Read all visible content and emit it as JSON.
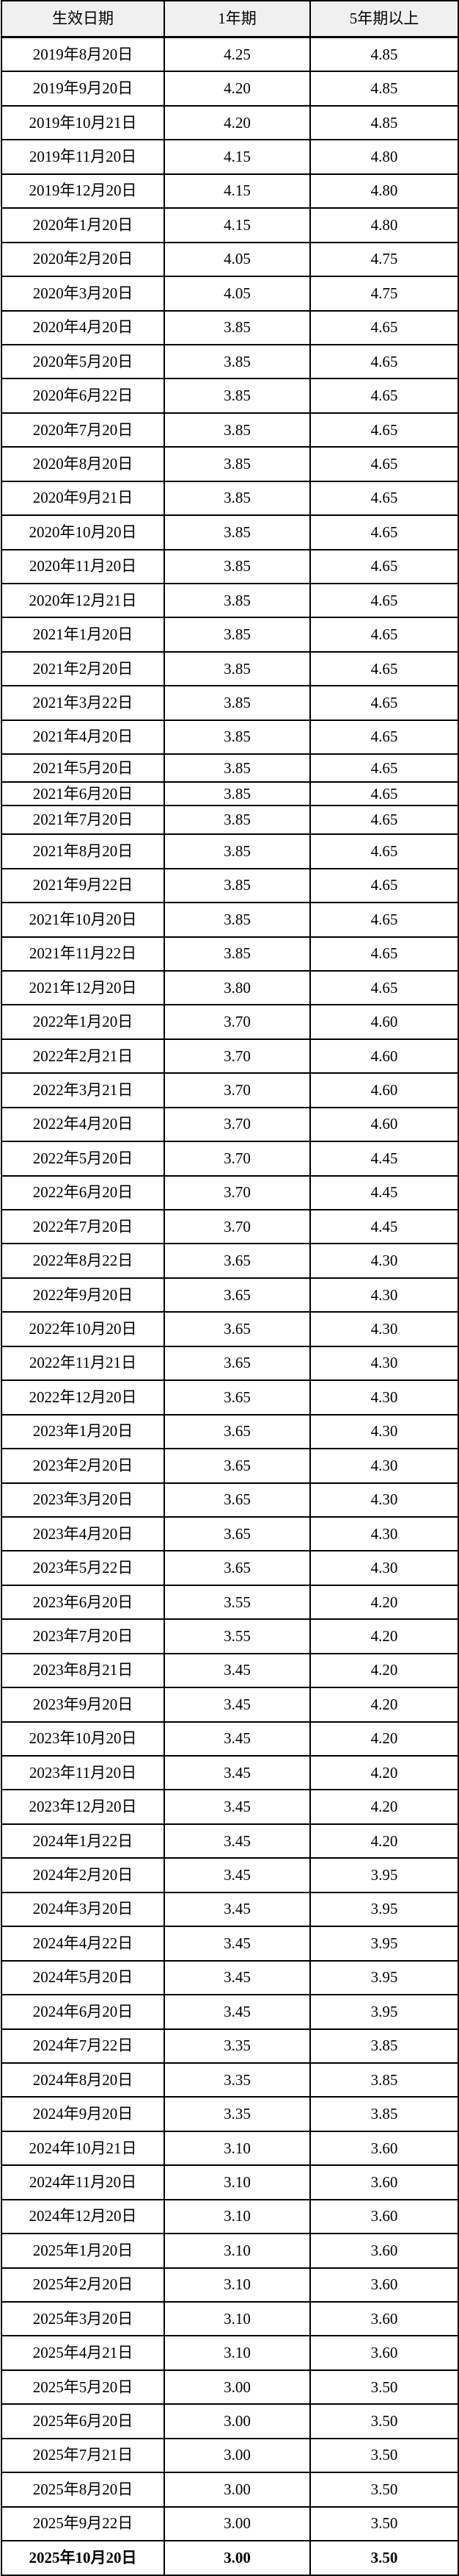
{
  "chart_data": {
    "type": "table",
    "columns": [
      "生效日期",
      "1年期",
      "5年期以上"
    ],
    "column_keys": [
      "effective_date",
      "one_year_rate",
      "five_year_plus_rate"
    ],
    "latest_row_emphasized": true,
    "rows": [
      [
        "2019年8月20日",
        "4.25",
        "4.85"
      ],
      [
        "2019年9月20日",
        "4.20",
        "4.85"
      ],
      [
        "2019年10月21日",
        "4.20",
        "4.85"
      ],
      [
        "2019年11月20日",
        "4.15",
        "4.80"
      ],
      [
        "2019年12月20日",
        "4.15",
        "4.80"
      ],
      [
        "2020年1月20日",
        "4.15",
        "4.80"
      ],
      [
        "2020年2月20日",
        "4.05",
        "4.75"
      ],
      [
        "2020年3月20日",
        "4.05",
        "4.75"
      ],
      [
        "2020年4月20日",
        "3.85",
        "4.65"
      ],
      [
        "2020年5月20日",
        "3.85",
        "4.65"
      ],
      [
        "2020年6月22日",
        "3.85",
        "4.65"
      ],
      [
        "2020年7月20日",
        "3.85",
        "4.65"
      ],
      [
        "2020年8月20日",
        "3.85",
        "4.65"
      ],
      [
        "2020年9月21日",
        "3.85",
        "4.65"
      ],
      [
        "2020年10月20日",
        "3.85",
        "4.65"
      ],
      [
        "2020年11月20日",
        "3.85",
        "4.65"
      ],
      [
        "2020年12月21日",
        "3.85",
        "4.65"
      ],
      [
        "2021年1月20日",
        "3.85",
        "4.65"
      ],
      [
        "2021年2月20日",
        "3.85",
        "4.65"
      ],
      [
        "2021年3月22日",
        "3.85",
        "4.65"
      ],
      [
        "2021年4月20日",
        "3.85",
        "4.65"
      ],
      [
        "2021年5月20日",
        "3.85",
        "4.65"
      ],
      [
        "2021年6月20日",
        "3.85",
        "4.65"
      ],
      [
        "2021年7月20日",
        "3.85",
        "4.65"
      ],
      [
        "2021年8月20日",
        "3.85",
        "4.65"
      ],
      [
        "2021年9月22日",
        "3.85",
        "4.65"
      ],
      [
        "2021年10月20日",
        "3.85",
        "4.65"
      ],
      [
        "2021年11月22日",
        "3.85",
        "4.65"
      ],
      [
        "2021年12月20日",
        "3.80",
        "4.65"
      ],
      [
        "2022年1月20日",
        "3.70",
        "4.60"
      ],
      [
        "2022年2月21日",
        "3.70",
        "4.60"
      ],
      [
        "2022年3月21日",
        "3.70",
        "4.60"
      ],
      [
        "2022年4月20日",
        "3.70",
        "4.60"
      ],
      [
        "2022年5月20日",
        "3.70",
        "4.45"
      ],
      [
        "2022年6月20日",
        "3.70",
        "4.45"
      ],
      [
        "2022年7月20日",
        "3.70",
        "4.45"
      ],
      [
        "2022年8月22日",
        "3.65",
        "4.30"
      ],
      [
        "2022年9月20日",
        "3.65",
        "4.30"
      ],
      [
        "2022年10月20日",
        "3.65",
        "4.30"
      ],
      [
        "2022年11月21日",
        "3.65",
        "4.30"
      ],
      [
        "2022年12月20日",
        "3.65",
        "4.30"
      ],
      [
        "2023年1月20日",
        "3.65",
        "4.30"
      ],
      [
        "2023年2月20日",
        "3.65",
        "4.30"
      ],
      [
        "2023年3月20日",
        "3.65",
        "4.30"
      ],
      [
        "2023年4月20日",
        "3.65",
        "4.30"
      ],
      [
        "2023年5月22日",
        "3.65",
        "4.30"
      ],
      [
        "2023年6月20日",
        "3.55",
        "4.20"
      ],
      [
        "2023年7月20日",
        "3.55",
        "4.20"
      ],
      [
        "2023年8月21日",
        "3.45",
        "4.20"
      ],
      [
        "2023年9月20日",
        "3.45",
        "4.20"
      ],
      [
        "2023年10月20日",
        "3.45",
        "4.20"
      ],
      [
        "2023年11月20日",
        "3.45",
        "4.20"
      ],
      [
        "2023年12月20日",
        "3.45",
        "4.20"
      ],
      [
        "2024年1月22日",
        "3.45",
        "4.20"
      ],
      [
        "2024年2月20日",
        "3.45",
        "3.95"
      ],
      [
        "2024年3月20日",
        "3.45",
        "3.95"
      ],
      [
        "2024年4月22日",
        "3.45",
        "3.95"
      ],
      [
        "2024年5月20日",
        "3.45",
        "3.95"
      ],
      [
        "2024年6月20日",
        "3.45",
        "3.95"
      ],
      [
        "2024年7月22日",
        "3.35",
        "3.85"
      ],
      [
        "2024年8月20日",
        "3.35",
        "3.85"
      ],
      [
        "2024年9月20日",
        "3.35",
        "3.85"
      ],
      [
        "2024年10月21日",
        "3.10",
        "3.60"
      ],
      [
        "2024年11月20日",
        "3.10",
        "3.60"
      ],
      [
        "2024年12月20日",
        "3.10",
        "3.60"
      ],
      [
        "2025年1月20日",
        "3.10",
        "3.60"
      ],
      [
        "2025年2月20日",
        "3.10",
        "3.60"
      ],
      [
        "2025年3月20日",
        "3.10",
        "3.60"
      ],
      [
        "2025年4月21日",
        "3.10",
        "3.60"
      ],
      [
        "2025年5月20日",
        "3.00",
        "3.50"
      ],
      [
        "2025年6月20日",
        "3.00",
        "3.50"
      ],
      [
        "2025年7月21日",
        "3.00",
        "3.50"
      ],
      [
        "2025年8月20日",
        "3.00",
        "3.50"
      ],
      [
        "2025年9月22日",
        "3.00",
        "3.50"
      ],
      [
        "2025年10月20日",
        "3.00",
        "3.50"
      ]
    ]
  },
  "colors": {
    "header_bg": "#f0f0f0",
    "border": "#000000",
    "text": "#000000",
    "row_bg": "#ffffff"
  }
}
